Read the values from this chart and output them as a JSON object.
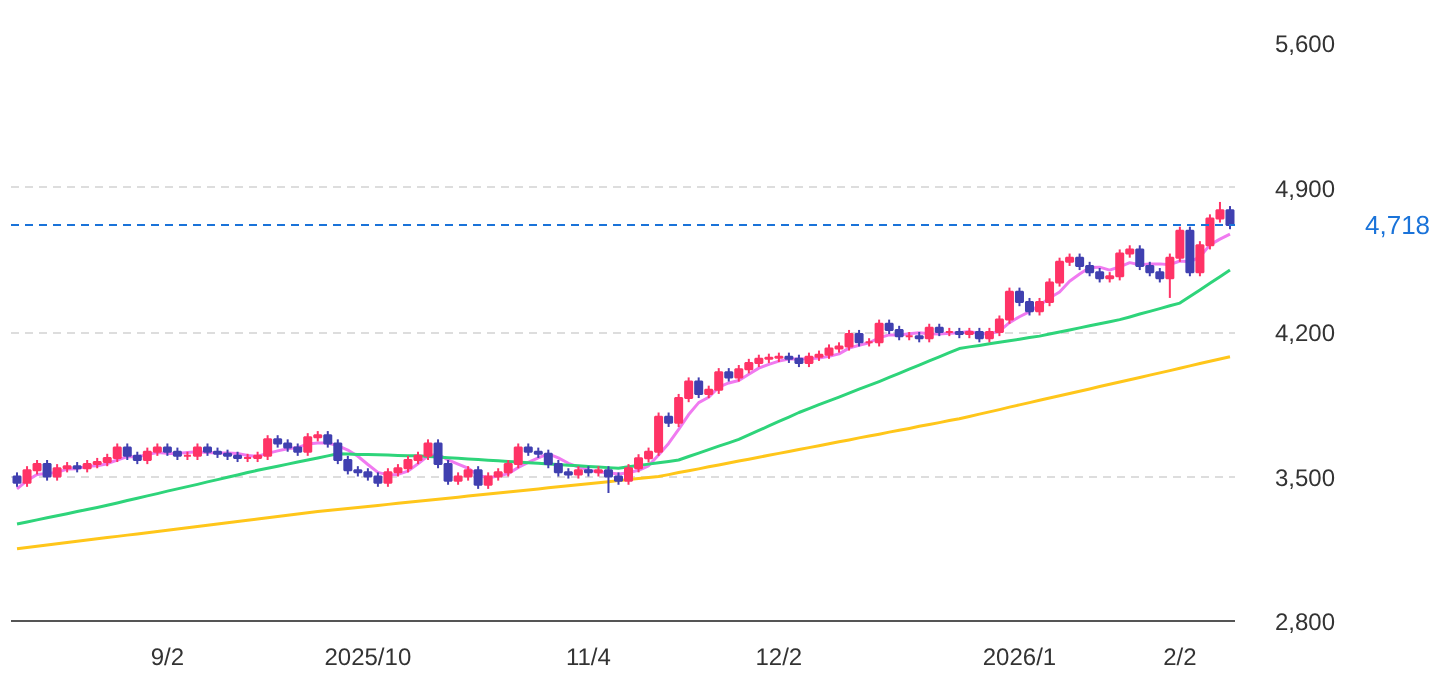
{
  "chart_data": {
    "type": "candlestick",
    "categories": [
      null,
      null,
      null,
      null,
      null,
      null,
      null,
      null,
      null,
      null,
      null,
      null,
      null,
      null,
      null,
      "9/2",
      null,
      null,
      null,
      null,
      null,
      null,
      null,
      null,
      null,
      null,
      null,
      null,
      null,
      null,
      null,
      null,
      null,
      null,
      null,
      "2025/10",
      null,
      null,
      null,
      null,
      null,
      null,
      null,
      null,
      null,
      null,
      null,
      null,
      null,
      null,
      null,
      null,
      null,
      null,
      null,
      null,
      null,
      "11/4",
      null,
      null,
      null,
      null,
      null,
      null,
      null,
      null,
      null,
      null,
      null,
      null,
      null,
      null,
      null,
      null,
      null,
      null,
      "12/2",
      null,
      null,
      null,
      null,
      null,
      null,
      null,
      null,
      null,
      null,
      null,
      null,
      null,
      null,
      null,
      null,
      null,
      null,
      null,
      null,
      null,
      null,
      null,
      "2026/1",
      null,
      null,
      null,
      null,
      null,
      null,
      null,
      null,
      null,
      null,
      null,
      null,
      null,
      null,
      null,
      "2/2",
      null,
      null,
      null,
      null,
      null
    ],
    "ohlc": [
      [
        3500,
        3520,
        3450,
        3470
      ],
      [
        3470,
        3550,
        3450,
        3530
      ],
      [
        3530,
        3580,
        3510,
        3560
      ],
      [
        3560,
        3580,
        3480,
        3500
      ],
      [
        3500,
        3560,
        3480,
        3540
      ],
      [
        3540,
        3570,
        3520,
        3550
      ],
      [
        3550,
        3570,
        3520,
        3540
      ],
      [
        3540,
        3580,
        3520,
        3560
      ],
      [
        3560,
        3590,
        3540,
        3570
      ],
      [
        3570,
        3610,
        3550,
        3590
      ],
      [
        3590,
        3660,
        3570,
        3640
      ],
      [
        3640,
        3660,
        3580,
        3600
      ],
      [
        3600,
        3620,
        3560,
        3580
      ],
      [
        3580,
        3640,
        3560,
        3620
      ],
      [
        3620,
        3660,
        3600,
        3640
      ],
      [
        3640,
        3660,
        3600,
        3620
      ],
      [
        3620,
        3640,
        3580,
        3600
      ],
      [
        3600,
        3620,
        3580,
        3600
      ],
      [
        3600,
        3660,
        3580,
        3640
      ],
      [
        3640,
        3660,
        3600,
        3620
      ],
      [
        3620,
        3640,
        3590,
        3610
      ],
      [
        3610,
        3630,
        3580,
        3600
      ],
      [
        3600,
        3620,
        3570,
        3590
      ],
      [
        3590,
        3610,
        3570,
        3590
      ],
      [
        3590,
        3620,
        3570,
        3600
      ],
      [
        3600,
        3700,
        3580,
        3680
      ],
      [
        3680,
        3700,
        3640,
        3660
      ],
      [
        3660,
        3680,
        3620,
        3640
      ],
      [
        3640,
        3660,
        3600,
        3620
      ],
      [
        3620,
        3710,
        3600,
        3690
      ],
      [
        3690,
        3720,
        3670,
        3700
      ],
      [
        3700,
        3720,
        3640,
        3660
      ],
      [
        3660,
        3680,
        3560,
        3580
      ],
      [
        3580,
        3600,
        3510,
        3530
      ],
      [
        3530,
        3550,
        3500,
        3520
      ],
      [
        3520,
        3540,
        3480,
        3500
      ],
      [
        3500,
        3520,
        3450,
        3470
      ],
      [
        3470,
        3540,
        3450,
        3520
      ],
      [
        3520,
        3560,
        3500,
        3540
      ],
      [
        3540,
        3600,
        3520,
        3580
      ],
      [
        3580,
        3620,
        3560,
        3600
      ],
      [
        3600,
        3680,
        3580,
        3660
      ],
      [
        3660,
        3680,
        3540,
        3560
      ],
      [
        3560,
        3580,
        3460,
        3480
      ],
      [
        3480,
        3520,
        3460,
        3500
      ],
      [
        3500,
        3550,
        3480,
        3530
      ],
      [
        3530,
        3550,
        3440,
        3460
      ],
      [
        3460,
        3520,
        3440,
        3500
      ],
      [
        3500,
        3540,
        3480,
        3520
      ],
      [
        3520,
        3580,
        3500,
        3560
      ],
      [
        3560,
        3660,
        3540,
        3640
      ],
      [
        3640,
        3660,
        3600,
        3620
      ],
      [
        3620,
        3640,
        3590,
        3610
      ],
      [
        3610,
        3630,
        3540,
        3560
      ],
      [
        3560,
        3580,
        3500,
        3520
      ],
      [
        3520,
        3540,
        3490,
        3510
      ],
      [
        3510,
        3550,
        3490,
        3530
      ],
      [
        3530,
        3550,
        3500,
        3520
      ],
      [
        3520,
        3550,
        3500,
        3530
      ],
      [
        3530,
        3550,
        3420,
        3500
      ],
      [
        3500,
        3520,
        3460,
        3480
      ],
      [
        3480,
        3560,
        3460,
        3540
      ],
      [
        3540,
        3608,
        3520,
        3588
      ],
      [
        3588,
        3640,
        3568,
        3620
      ],
      [
        3620,
        3810,
        3600,
        3790
      ],
      [
        3790,
        3810,
        3740,
        3760
      ],
      [
        3760,
        3900,
        3740,
        3880
      ],
      [
        3880,
        3980,
        3860,
        3960
      ],
      [
        3960,
        3980,
        3880,
        3900
      ],
      [
        3900,
        3940,
        3880,
        3920
      ],
      [
        3920,
        4025,
        3900,
        4005
      ],
      [
        4005,
        4025,
        3960,
        3980
      ],
      [
        3980,
        4040,
        3960,
        4020
      ],
      [
        4020,
        4070,
        4000,
        4050
      ],
      [
        4050,
        4090,
        4030,
        4070
      ],
      [
        4070,
        4095,
        4050,
        4075
      ],
      [
        4075,
        4100,
        4055,
        4080
      ],
      [
        4080,
        4100,
        4050,
        4070
      ],
      [
        4070,
        4090,
        4030,
        4050
      ],
      [
        4050,
        4100,
        4030,
        4080
      ],
      [
        4080,
        4110,
        4060,
        4090
      ],
      [
        4090,
        4140,
        4070,
        4120
      ],
      [
        4120,
        4150,
        4100,
        4130
      ],
      [
        4130,
        4210,
        4110,
        4190
      ],
      [
        4190,
        4210,
        4130,
        4150
      ],
      [
        4150,
        4170,
        4130,
        4150
      ],
      [
        4150,
        4260,
        4130,
        4240
      ],
      [
        4240,
        4260,
        4190,
        4210
      ],
      [
        4210,
        4230,
        4160,
        4180
      ],
      [
        4180,
        4200,
        4160,
        4180
      ],
      [
        4180,
        4200,
        4150,
        4170
      ],
      [
        4170,
        4240,
        4150,
        4220
      ],
      [
        4220,
        4240,
        4180,
        4200
      ],
      [
        4200,
        4220,
        4180,
        4200
      ],
      [
        4200,
        4220,
        4170,
        4190
      ],
      [
        4190,
        4220,
        4170,
        4200
      ],
      [
        4200,
        4220,
        4150,
        4170
      ],
      [
        4170,
        4220,
        4150,
        4200
      ],
      [
        4200,
        4280,
        4180,
        4260
      ],
      [
        4260,
        4415,
        4240,
        4395
      ],
      [
        4395,
        4415,
        4325,
        4345
      ],
      [
        4345,
        4365,
        4280,
        4300
      ],
      [
        4300,
        4365,
        4280,
        4345
      ],
      [
        4345,
        4460,
        4325,
        4440
      ],
      [
        4440,
        4560,
        4420,
        4540
      ],
      [
        4540,
        4580,
        4520,
        4560
      ],
      [
        4560,
        4580,
        4500,
        4520
      ],
      [
        4520,
        4540,
        4470,
        4490
      ],
      [
        4490,
        4510,
        4440,
        4460
      ],
      [
        4460,
        4490,
        4440,
        4470
      ],
      [
        4470,
        4600,
        4450,
        4580
      ],
      [
        4580,
        4620,
        4560,
        4600
      ],
      [
        4600,
        4620,
        4500,
        4520
      ],
      [
        4520,
        4540,
        4470,
        4490
      ],
      [
        4490,
        4510,
        4440,
        4460
      ],
      [
        4460,
        4580,
        4365,
        4560
      ],
      [
        4560,
        4710,
        4540,
        4690
      ],
      [
        4690,
        4710,
        4470,
        4490
      ],
      [
        4490,
        4640,
        4470,
        4620
      ],
      [
        4620,
        4770,
        4600,
        4750
      ],
      [
        4750,
        4830,
        4730,
        4790
      ],
      [
        4790,
        4810,
        4698,
        4718
      ]
    ],
    "colors": [
      "#4040b0",
      "#ff3366",
      "#ff3366",
      "#4040b0",
      "#ff3366",
      "#ff3366",
      "#4040b0",
      "#ff3366",
      "#ff3366",
      "#ff3366",
      "#ff3366",
      "#4040b0",
      "#4040b0",
      "#ff3366",
      "#ff3366",
      "#4040b0",
      "#4040b0",
      "#ff3366",
      "#ff3366",
      "#4040b0",
      "#4040b0",
      "#4040b0",
      "#4040b0",
      "#ff3366",
      "#ff3366",
      "#ff3366",
      "#4040b0",
      "#4040b0",
      "#4040b0",
      "#ff3366",
      "#ff3366",
      "#4040b0",
      "#4040b0",
      "#4040b0",
      "#4040b0",
      "#4040b0",
      "#4040b0",
      "#ff3366",
      "#ff3366",
      "#ff3366",
      "#ff3366",
      "#ff3366",
      "#4040b0",
      "#4040b0",
      "#ff3366",
      "#ff3366",
      "#4040b0",
      "#ff3366",
      "#ff3366",
      "#ff3366",
      "#ff3366",
      "#4040b0",
      "#4040b0",
      "#4040b0",
      "#4040b0",
      "#4040b0",
      "#ff3366",
      "#4040b0",
      "#ff3366",
      "#4040b0",
      "#4040b0",
      "#ff3366",
      "#ff3366",
      "#ff3366",
      "#ff3366",
      "#4040b0",
      "#ff3366",
      "#ff3366",
      "#4040b0",
      "#ff3366",
      "#ff3366",
      "#4040b0",
      "#ff3366",
      "#ff3366",
      "#ff3366",
      "#ff3366",
      "#ff3366",
      "#4040b0",
      "#4040b0",
      "#ff3366",
      "#ff3366",
      "#ff3366",
      "#ff3366",
      "#ff3366",
      "#4040b0",
      "#ff3366",
      "#ff3366",
      "#4040b0",
      "#4040b0",
      "#ff3366",
      "#4040b0",
      "#ff3366",
      "#4040b0",
      "#ff3366",
      "#4040b0",
      "#ff3366",
      "#4040b0",
      "#ff3366",
      "#ff3366",
      "#ff3366",
      "#4040b0",
      "#4040b0",
      "#ff3366",
      "#ff3366",
      "#ff3366",
      "#ff3366",
      "#4040b0",
      "#4040b0",
      "#4040b0",
      "#ff3366",
      "#ff3366",
      "#ff3366",
      "#4040b0",
      "#4040b0",
      "#4040b0",
      "#ff3366",
      "#ff3366",
      "#4040b0",
      "#ff3366",
      "#ff3366",
      "#ff3366",
      "#4040b0"
    ],
    "series": [
      {
        "type": "line",
        "color": "#f07af0",
        "values": [
          3440,
          3480,
          3510,
          3515,
          3520,
          3536,
          3538,
          3550,
          3552,
          3562,
          3580,
          3596,
          3596,
          3606,
          3616,
          3612,
          3612,
          3616,
          3620,
          3616,
          3614,
          3614,
          3612,
          3602,
          3598,
          3612,
          3624,
          3634,
          3640,
          3658,
          3662,
          3662,
          3650,
          3628,
          3598,
          3558,
          3520,
          3508,
          3510,
          3526,
          3562,
          3600,
          3608,
          3580,
          3560,
          3540,
          3506,
          3494,
          3502,
          3514,
          3544,
          3568,
          3590,
          3610,
          3590,
          3564,
          3546,
          3532,
          3522,
          3518,
          3512,
          3518,
          3530,
          3552,
          3604,
          3660,
          3728,
          3800,
          3858,
          3884,
          3933,
          3953,
          3965,
          3995,
          4025,
          4043,
          4059,
          4069,
          4069,
          4071,
          4074,
          4082,
          4094,
          4122,
          4136,
          4148,
          4172,
          4186,
          4186,
          4192,
          4196,
          4192,
          4190,
          4194,
          4196,
          4202,
          4192,
          4192,
          4204,
          4245,
          4274,
          4299,
          4329,
          4365,
          4394,
          4446,
          4481,
          4512,
          4514,
          4500,
          4516,
          4536,
          4526,
          4530,
          4530,
          4526,
          4544,
          4540,
          4564,
          4622,
          4650,
          4674
        ]
      },
      {
        "type": "line",
        "color": "#2ed47a",
        "values": [
          3270,
          3280,
          3290,
          3300,
          3310,
          3320,
          3330,
          3340,
          3350,
          3361,
          3372,
          3384,
          3395,
          3406,
          3417,
          3429,
          3440,
          3451,
          3462,
          3474,
          3485,
          3496,
          3507,
          3519,
          3530,
          3540,
          3550,
          3560,
          3570,
          3580,
          3590,
          3600,
          3610,
          3609,
          3607,
          3606,
          3605,
          3604,
          3602,
          3601,
          3600,
          3597,
          3594,
          3591,
          3588,
          3585,
          3582,
          3579,
          3576,
          3573,
          3570,
          3567,
          3564,
          3561,
          3558,
          3555,
          3552,
          3549,
          3546,
          3543,
          3540,
          3547,
          3553,
          3560,
          3567,
          3573,
          3580,
          3597,
          3613,
          3630,
          3647,
          3663,
          3680,
          3702,
          3723,
          3745,
          3767,
          3788,
          3810,
          3829,
          3848,
          3866,
          3885,
          3904,
          3923,
          3941,
          3960,
          3980,
          4000,
          4020,
          4040,
          4060,
          4080,
          4100,
          4120,
          4128,
          4135,
          4143,
          4150,
          4158,
          4165,
          4173,
          4180,
          4190,
          4200,
          4210,
          4220,
          4230,
          4240,
          4250,
          4260,
          4273,
          4287,
          4300,
          4313,
          4327,
          4340,
          4372,
          4404,
          4436,
          4468,
          4500
        ]
      },
      {
        "type": "line",
        "color": "#ffc61a",
        "values": [
          3150,
          3156,
          3162,
          3168,
          3174,
          3180,
          3186,
          3192,
          3198,
          3204,
          3210,
          3216,
          3222,
          3228,
          3234,
          3240,
          3246,
          3252,
          3258,
          3264,
          3270,
          3276,
          3282,
          3288,
          3294,
          3300,
          3306,
          3312,
          3318,
          3324,
          3330,
          3335,
          3340,
          3345,
          3350,
          3355,
          3360,
          3365,
          3370,
          3375,
          3380,
          3385,
          3390,
          3395,
          3400,
          3405,
          3410,
          3415,
          3420,
          3425,
          3430,
          3435,
          3440,
          3445,
          3450,
          3455,
          3460,
          3465,
          3470,
          3475,
          3480,
          3485,
          3490,
          3495,
          3500,
          3509,
          3519,
          3528,
          3537,
          3547,
          3556,
          3565,
          3575,
          3584,
          3593,
          3603,
          3612,
          3621,
          3631,
          3640,
          3649,
          3659,
          3668,
          3677,
          3687,
          3696,
          3705,
          3715,
          3724,
          3733,
          3743,
          3752,
          3761,
          3771,
          3780,
          3791,
          3802,
          3813,
          3824,
          3836,
          3847,
          3858,
          3869,
          3880,
          3891,
          3902,
          3913,
          3924,
          3936,
          3947,
          3958,
          3969,
          3980,
          3991,
          4002,
          4013,
          4024,
          4036,
          4047,
          4058,
          4069,
          4080
        ]
      }
    ],
    "ylim": [
      2800,
      5600
    ],
    "yticks": [
      {
        "value": 2800,
        "label": "2,800"
      },
      {
        "value": 3500,
        "label": "3,500"
      },
      {
        "value": 4200,
        "label": "4,200"
      },
      {
        "value": 4900,
        "label": "4,900"
      },
      {
        "value": 5600,
        "label": "5,600"
      }
    ],
    "ref_lines": [
      {
        "axis": "y",
        "value": 4718,
        "label": "4,718",
        "color": "#1a73d9",
        "line_style": "dashed"
      }
    ],
    "grid": "y"
  }
}
